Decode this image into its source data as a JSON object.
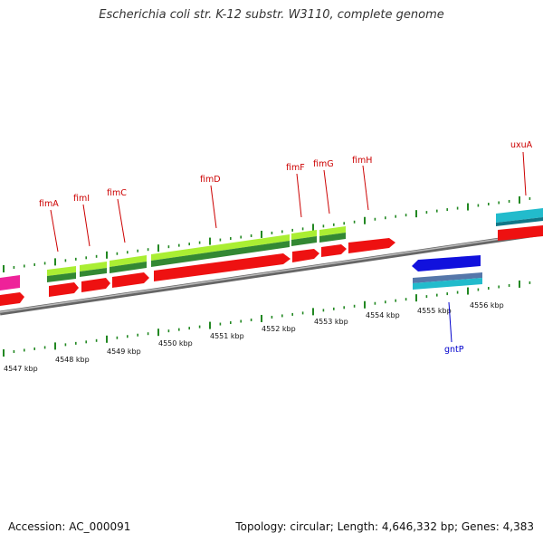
{
  "title": "Escherichia coli str. K-12 substr. W3110, complete genome",
  "footer": {
    "accession": "Accession: AC_000091",
    "info": "Topology: circular; Length: 4,646,332 bp; Genes: 4,383"
  },
  "scale": {
    "unit": "kbp",
    "ticks": [
      "4547 kbp",
      "4548 kbp",
      "4549 kbp",
      "4550 kbp",
      "4551 kbp",
      "4552 kbp",
      "4553 kbp",
      "4554 kbp",
      "4555 kbp",
      "4556 kbp"
    ]
  },
  "genes": [
    {
      "name": "fimA",
      "color": "#cc0000"
    },
    {
      "name": "fimI",
      "color": "#cc0000"
    },
    {
      "name": "fimC",
      "color": "#cc0000"
    },
    {
      "name": "fimD",
      "color": "#cc0000"
    },
    {
      "name": "fimF",
      "color": "#cc0000"
    },
    {
      "name": "fimG",
      "color": "#cc0000"
    },
    {
      "name": "fimH",
      "color": "#cc0000"
    },
    {
      "name": "uxuA",
      "color": "#cc0000"
    },
    {
      "name": "gntP",
      "color": "#0000cc"
    }
  ],
  "colors": {
    "cds": "#ee1111",
    "gene_green_light": "#aaee33",
    "gene_green_dark": "#338833",
    "backbone": "#888888",
    "ticks": "#228822",
    "cyan": "#22bbcc",
    "blue": "#1111dd",
    "magenta": "#ee2299"
  }
}
